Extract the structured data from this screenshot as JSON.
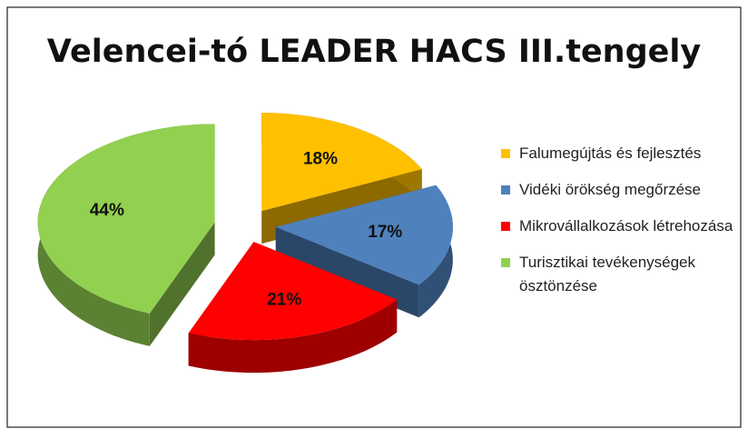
{
  "chart_data": {
    "type": "pie",
    "title": "Velencei-tó LEADER HACS III.tengely",
    "categories": [
      "Falumegújtás és fejlesztés",
      "Vidéki örökség megőrzése",
      "Mikrovállalkozások létrehozása",
      "Turisztikai tevékenységek ösztönzése"
    ],
    "values": [
      18,
      17,
      21,
      44
    ],
    "value_labels": [
      "18%",
      "17%",
      "21%",
      "44%"
    ],
    "colors": [
      "#ffc000",
      "#4f81bd",
      "#ff0000",
      "#92d050"
    ],
    "legend": "right"
  }
}
